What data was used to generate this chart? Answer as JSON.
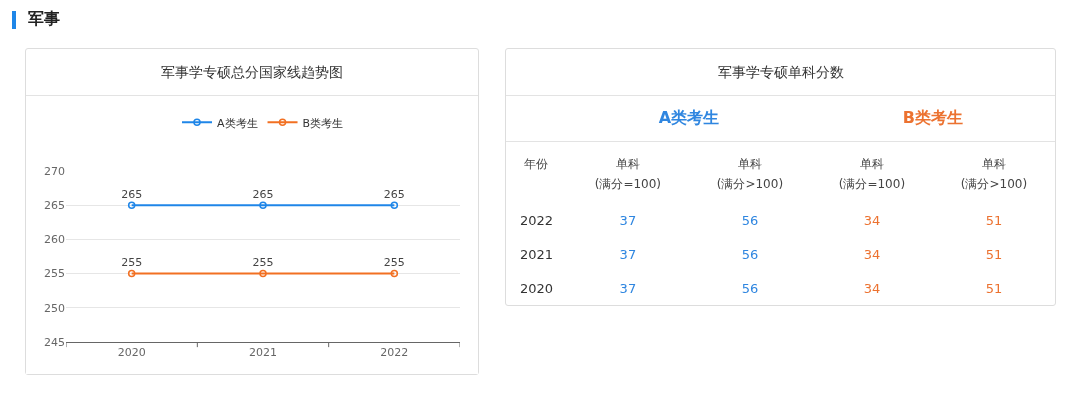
{
  "chart_data": [
    {
      "type": "line",
      "title": "军事学专硕总分国家线趋势图",
      "subtitle": "军事",
      "categories": [
        "2020",
        "2021",
        "2022"
      ],
      "series": [
        {
          "name": "A类考生",
          "color": "#1f86e8",
          "values": [
            265,
            265,
            265
          ]
        },
        {
          "name": "B类考生",
          "color": "#f27022",
          "values": [
            255,
            255,
            255
          ]
        }
      ],
      "ylim": [
        245,
        270
      ],
      "yticks": [
        245,
        250,
        255,
        260,
        265,
        270
      ],
      "grid": "y",
      "legend": "top",
      "marker": "circle",
      "line_style": "solid",
      "data_labels": true
    },
    {
      "type": "other",
      "title": "军事学专硕单科分数",
      "categories": [
        "2022",
        "2021",
        "2020"
      ],
      "annotations": [
        "年份",
        "A类考生",
        "B类考生"
      ],
      "series": [
        {
          "name": "单科\n(满分=100)",
          "values": [
            37,
            37,
            37
          ]
        },
        {
          "name": "单科\n(满分>100)",
          "values": [
            56,
            56,
            56
          ]
        },
        {
          "name": "单科\n(满分=100)",
          "values": [
            34,
            34,
            34
          ]
        },
        {
          "name": "单科\n(满分>100)",
          "values": [
            51,
            51,
            51
          ]
        }
      ],
      "data_labels": true
    }
  ]
}
